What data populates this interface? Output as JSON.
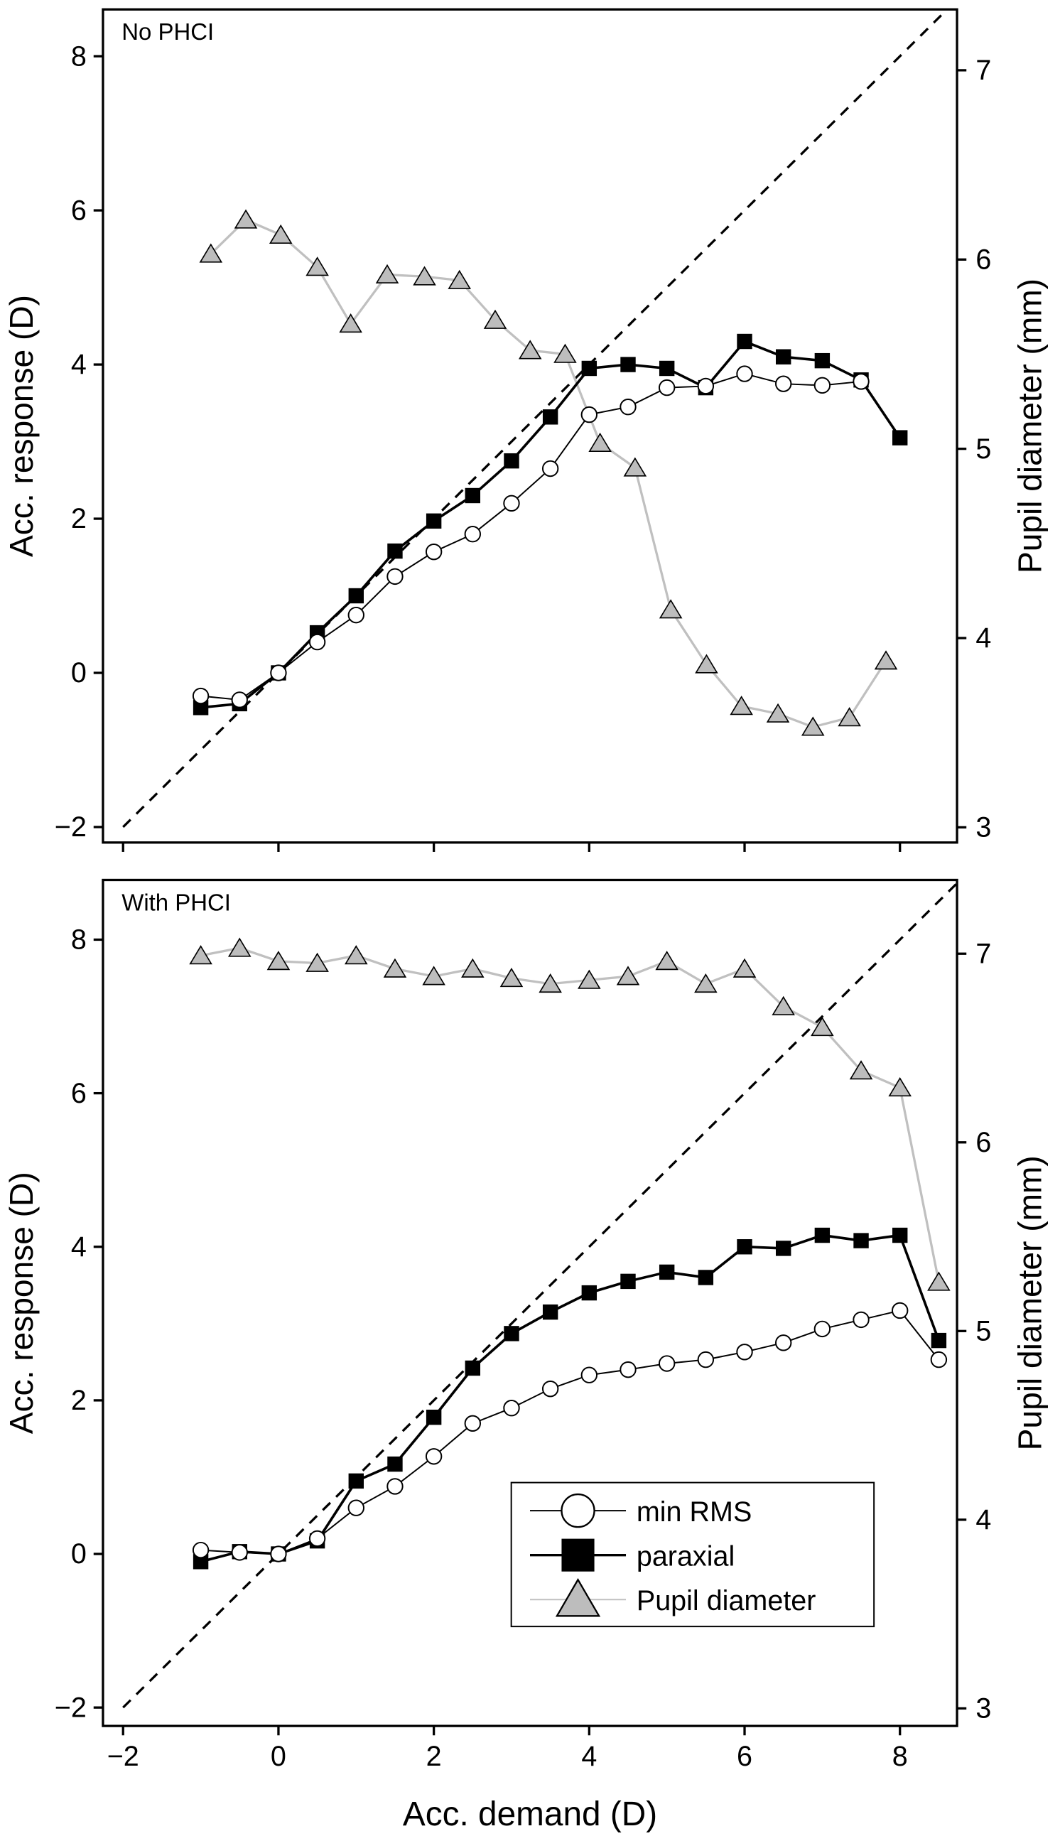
{
  "chart_data": [
    {
      "type": "line",
      "panel_label": "No PHCI",
      "xlabel": "Acc. demand (D)",
      "ylabel": "Acc. response (D)",
      "y2label": "Pupil diameter (mm)",
      "xlim": [
        -2,
        8.8
      ],
      "ylim": [
        -2,
        8.8
      ],
      "y2lim": [
        3,
        7.4
      ],
      "xticks": [
        -2,
        0,
        2,
        4,
        6,
        8
      ],
      "yticks": [
        -2,
        0,
        2,
        4,
        6,
        8
      ],
      "y2ticks": [
        3,
        4,
        5,
        6,
        7
      ],
      "reference_line": "y = x (dashed)",
      "series": [
        {
          "name": "min RMS",
          "axis": "left",
          "marker": "open-circle",
          "x": [
            -1,
            -0.5,
            0,
            0.5,
            1,
            1.5,
            2,
            2.5,
            3,
            3.5,
            4,
            4.5,
            5,
            5.5,
            6,
            6.5,
            7,
            7.5
          ],
          "y": [
            -0.3,
            -0.35,
            0,
            0.4,
            0.75,
            1.25,
            1.57,
            1.8,
            2.2,
            2.65,
            3.35,
            3.45,
            3.7,
            3.72,
            3.88,
            3.75,
            3.73,
            3.78
          ]
        },
        {
          "name": "paraxial",
          "axis": "left",
          "marker": "filled-square",
          "x": [
            -1,
            -0.5,
            0,
            0.5,
            1,
            1.5,
            2,
            2.5,
            3,
            3.5,
            4,
            4.5,
            5,
            5.5,
            6,
            6.5,
            7,
            7.5,
            8
          ],
          "y": [
            -0.45,
            -0.4,
            0,
            0.52,
            1.0,
            1.58,
            1.97,
            2.3,
            2.75,
            3.32,
            3.95,
            4.0,
            3.95,
            3.7,
            4.3,
            4.1,
            4.05,
            3.8,
            3.05
          ]
        },
        {
          "name": "Pupil diameter",
          "axis": "right",
          "marker": "gray-triangle",
          "x": [
            -0.87,
            -0.42,
            0.03,
            0.5,
            0.93,
            1.4,
            1.88,
            2.33,
            2.79,
            3.24,
            3.69,
            4.14,
            4.59,
            5.05,
            5.51,
            5.96,
            6.43,
            6.88,
            7.35,
            7.82
          ],
          "y": [
            6.03,
            6.21,
            6.13,
            5.96,
            5.66,
            5.92,
            5.91,
            5.89,
            5.68,
            5.52,
            5.5,
            5.03,
            4.9,
            4.15,
            3.86,
            3.64,
            3.6,
            3.53,
            3.58,
            3.88
          ]
        }
      ]
    },
    {
      "type": "line",
      "panel_label": "With PHCI",
      "xlabel": "Acc. demand (D)",
      "ylabel": "Acc. response (D)",
      "y2label": "Pupil diameter (mm)",
      "xlim": [
        -2,
        8.8
      ],
      "ylim": [
        -2,
        8.8
      ],
      "y2lim": [
        3,
        7.4
      ],
      "xticks": [
        -2,
        0,
        2,
        4,
        6,
        8
      ],
      "yticks": [
        -2,
        0,
        2,
        4,
        6,
        8
      ],
      "y2ticks": [
        3,
        4,
        5,
        6,
        7
      ],
      "reference_line": "y = x (dashed)",
      "legend": {
        "placement": "bottom-right",
        "entries": [
          "min RMS",
          "paraxial",
          "Pupil diameter"
        ]
      },
      "series": [
        {
          "name": "min RMS",
          "axis": "left",
          "marker": "open-circle",
          "x": [
            -1,
            -0.5,
            0,
            0.5,
            1,
            1.5,
            2,
            2.5,
            3,
            3.5,
            4,
            4.5,
            5,
            5.5,
            6,
            6.5,
            7,
            7.5,
            8,
            8.5
          ],
          "y": [
            0.05,
            0.02,
            0,
            0.2,
            0.6,
            0.88,
            1.27,
            1.7,
            1.9,
            2.15,
            2.33,
            2.4,
            2.48,
            2.53,
            2.63,
            2.75,
            2.93,
            3.05,
            3.17,
            2.53
          ]
        },
        {
          "name": "paraxial",
          "axis": "left",
          "marker": "filled-square",
          "x": [
            -1,
            -0.5,
            0,
            0.5,
            1,
            1.5,
            2,
            2.5,
            3,
            3.5,
            4,
            4.5,
            5,
            5.5,
            6,
            6.5,
            7,
            7.5,
            8,
            8.5
          ],
          "y": [
            -0.1,
            0.03,
            0,
            0.17,
            0.95,
            1.17,
            1.78,
            2.42,
            2.87,
            3.15,
            3.4,
            3.55,
            3.67,
            3.6,
            4.0,
            3.98,
            4.15,
            4.08,
            4.15,
            2.78
          ]
        },
        {
          "name": "Pupil diameter",
          "axis": "right",
          "marker": "gray-triangle",
          "x": [
            -1,
            -0.5,
            0,
            0.5,
            1,
            1.5,
            2,
            2.5,
            3,
            3.5,
            4,
            4.5,
            5,
            5.5,
            6,
            6.5,
            7,
            7.5,
            8,
            8.5
          ],
          "y": [
            6.99,
            7.03,
            6.96,
            6.95,
            6.99,
            6.92,
            6.88,
            6.92,
            6.87,
            6.84,
            6.86,
            6.88,
            6.96,
            6.84,
            6.92,
            6.72,
            6.61,
            6.38,
            6.29,
            5.26
          ]
        }
      ]
    }
  ],
  "colors": {
    "axis": "#000000",
    "paraxial": "#000000",
    "min_rms_fill": "#ffffff",
    "pupil_line": "#c0c0c0",
    "pupil_fill": "#bdbdbd"
  }
}
